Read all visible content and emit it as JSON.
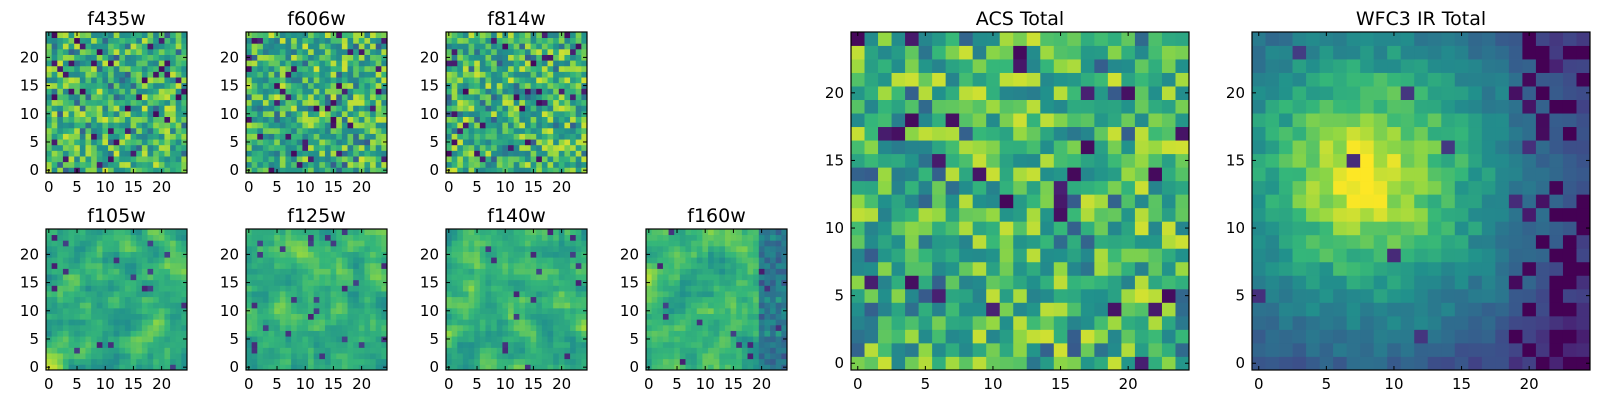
{
  "chart_data": [
    {
      "type": "heatmap",
      "title": "f435w",
      "xticks": [
        "0",
        "5",
        "10",
        "15",
        "20"
      ],
      "yticks": [
        "0",
        "5",
        "10",
        "15",
        "20"
      ],
      "xlim": [
        -0.5,
        24.5
      ],
      "ylim": [
        -0.5,
        24.5
      ],
      "grid_size": 25,
      "colormap": "viridis",
      "texture_seed": 11,
      "pattern": "noise"
    },
    {
      "type": "heatmap",
      "title": "f606w",
      "xticks": [
        "0",
        "5",
        "10",
        "15",
        "20"
      ],
      "yticks": [
        "0",
        "5",
        "10",
        "15",
        "20"
      ],
      "xlim": [
        -0.5,
        24.5
      ],
      "ylim": [
        -0.5,
        24.5
      ],
      "grid_size": 25,
      "colormap": "viridis",
      "texture_seed": 23,
      "pattern": "noise"
    },
    {
      "type": "heatmap",
      "title": "f814w",
      "xticks": [
        "0",
        "5",
        "10",
        "15",
        "20"
      ],
      "yticks": [
        "0",
        "5",
        "10",
        "15",
        "20"
      ],
      "xlim": [
        -0.5,
        24.5
      ],
      "ylim": [
        -0.5,
        24.5
      ],
      "grid_size": 25,
      "colormap": "viridis",
      "texture_seed": 37,
      "pattern": "noise"
    },
    {
      "type": "heatmap",
      "title": "f105w",
      "xticks": [
        "0",
        "5",
        "10",
        "15",
        "20"
      ],
      "yticks": [
        "0",
        "5",
        "10",
        "15",
        "20"
      ],
      "xlim": [
        -0.5,
        24.5
      ],
      "ylim": [
        -0.5,
        24.5
      ],
      "grid_size": 25,
      "colormap": "viridis",
      "texture_seed": 41,
      "pattern": "blob"
    },
    {
      "type": "heatmap",
      "title": "f125w",
      "xticks": [
        "0",
        "5",
        "10",
        "15",
        "20"
      ],
      "yticks": [
        "0",
        "5",
        "10",
        "15",
        "20"
      ],
      "xlim": [
        -0.5,
        24.5
      ],
      "ylim": [
        -0.5,
        24.5
      ],
      "grid_size": 25,
      "colormap": "viridis",
      "texture_seed": 53,
      "pattern": "blob"
    },
    {
      "type": "heatmap",
      "title": "f140w",
      "xticks": [
        "0",
        "5",
        "10",
        "15",
        "20"
      ],
      "yticks": [
        "0",
        "5",
        "10",
        "15",
        "20"
      ],
      "xlim": [
        -0.5,
        24.5
      ],
      "ylim": [
        -0.5,
        24.5
      ],
      "grid_size": 25,
      "colormap": "viridis",
      "texture_seed": 67,
      "pattern": "blob"
    },
    {
      "type": "heatmap",
      "title": "f160w",
      "xticks": [
        "0",
        "5",
        "10",
        "15",
        "20"
      ],
      "yticks": [
        "0",
        "5",
        "10",
        "15",
        "20"
      ],
      "xlim": [
        -0.5,
        24.5
      ],
      "ylim": [
        -0.5,
        24.5
      ],
      "grid_size": 25,
      "colormap": "viridis",
      "texture_seed": 79,
      "pattern": "edge"
    },
    {
      "type": "heatmap",
      "title": "ACS Total",
      "xticks": [
        "0",
        "5",
        "10",
        "15",
        "20"
      ],
      "yticks": [
        "0",
        "5",
        "10",
        "15",
        "20"
      ],
      "xlim": [
        -0.5,
        24.5
      ],
      "ylim": [
        -0.5,
        24.5
      ],
      "grid_size": 25,
      "colormap": "viridis",
      "texture_seed": 97,
      "pattern": "noise"
    },
    {
      "type": "heatmap",
      "title": "WFC3 IR Total",
      "xticks": [
        "0",
        "5",
        "10",
        "15",
        "20"
      ],
      "yticks": [
        "0",
        "5",
        "10",
        "15",
        "20"
      ],
      "xlim": [
        -0.5,
        24.5
      ],
      "ylim": [
        -0.5,
        24.5
      ],
      "grid_size": 25,
      "colormap": "viridis",
      "texture_seed": 101,
      "pattern": "smooth"
    }
  ]
}
